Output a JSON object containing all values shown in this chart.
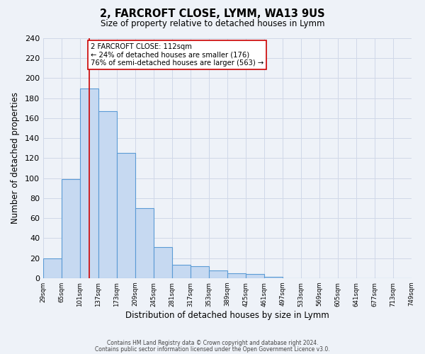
{
  "title": "2, FARCROFT CLOSE, LYMM, WA13 9US",
  "subtitle": "Size of property relative to detached houses in Lymm",
  "xlabel": "Distribution of detached houses by size in Lymm",
  "ylabel": "Number of detached properties",
  "bar_heights": [
    20,
    99,
    190,
    167,
    125,
    70,
    31,
    13,
    12,
    8,
    5,
    4,
    1,
    0,
    0,
    0,
    0,
    0,
    0,
    0
  ],
  "bar_facecolor": "#c6d9f1",
  "bar_edgecolor": "#5b9bd5",
  "bar_linewidth": 0.8,
  "vline_bin": 2.5,
  "vline_color": "#cc0000",
  "annotation_title": "2 FARCROFT CLOSE: 112sqm",
  "annotation_line1": "← 24% of detached houses are smaller (176)",
  "annotation_line2": "76% of semi-detached houses are larger (563) →",
  "annotation_box_edgecolor": "#cc0000",
  "annotation_box_facecolor": "#ffffff",
  "ylim": [
    0,
    240
  ],
  "yticks": [
    0,
    20,
    40,
    60,
    80,
    100,
    120,
    140,
    160,
    180,
    200,
    220,
    240
  ],
  "xtick_labels": [
    "29sqm",
    "65sqm",
    "101sqm",
    "137sqm",
    "173sqm",
    "209sqm",
    "245sqm",
    "281sqm",
    "317sqm",
    "353sqm",
    "389sqm",
    "425sqm",
    "461sqm",
    "497sqm",
    "533sqm",
    "569sqm",
    "605sqm",
    "641sqm",
    "677sqm",
    "713sqm",
    "749sqm"
  ],
  "grid_color": "#d0d8e8",
  "bg_color": "#eef2f8",
  "plot_bg_color": "#eef2f8",
  "footnote1": "Contains HM Land Registry data © Crown copyright and database right 2024.",
  "footnote2": "Contains public sector information licensed under the Open Government Licence v3.0."
}
